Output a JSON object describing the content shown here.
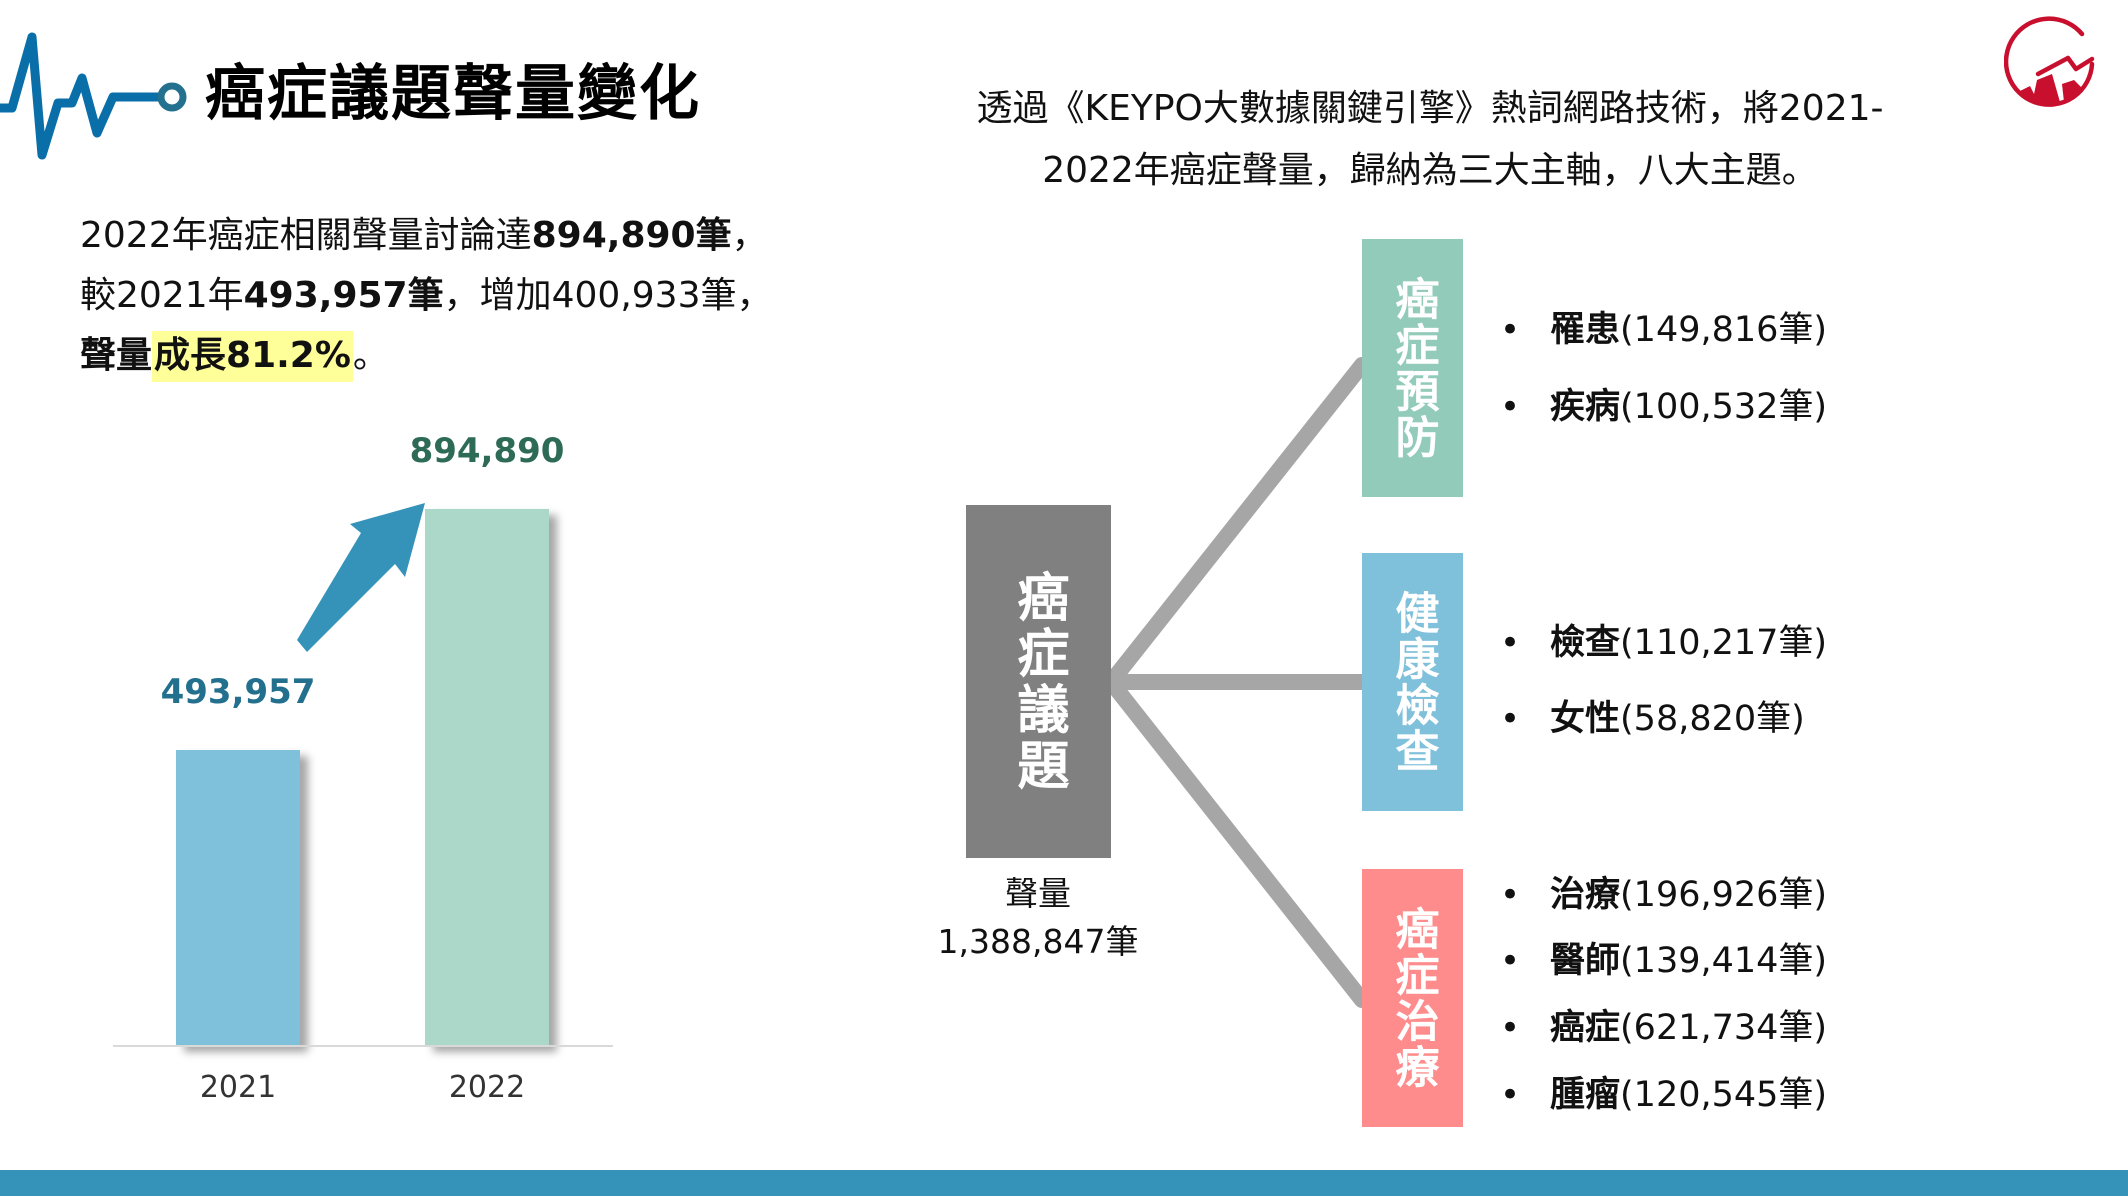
{
  "header": {
    "title": "癌症議題聲量變化",
    "intro_line1": "透過《KEYPO大數據關鍵引擎》熱詞網路技術，將2021-",
    "intro_line2": "2022年癌症聲量，歸納為三大主軸，八大主題。",
    "icons": {
      "left": "heartbeat-pulse-icon",
      "right": "brand-logo-icon"
    },
    "logo_color": "#c8102e",
    "pulse_color": "#0a6fa8"
  },
  "summary": {
    "line1_prefix": "2022年癌症相關聲量討論達",
    "line1_bold": "894,890筆",
    "line1_suffix": "，",
    "line2_prefix": "較2021年",
    "line2_bold": "493,957筆",
    "line2_suffix": "，增加400,933筆，",
    "line3_bold": "聲量",
    "line3_highlight": "成長81.2%",
    "line3_suffix": "。",
    "highlight_color": "#ffff99"
  },
  "chart_data": {
    "type": "bar",
    "title": "",
    "categories": [
      "2021",
      "2022"
    ],
    "values": [
      493957,
      894890
    ],
    "value_labels": [
      "493,957",
      "894,890"
    ],
    "colors": [
      "#7fc0da",
      "#abd8c9"
    ],
    "xlabel": "",
    "ylabel": "",
    "ylim": [
      0,
      1000000
    ],
    "grid": false,
    "legend": null,
    "annotations": [
      "upward trend arrow from 2021 to 2022"
    ]
  },
  "diagram": {
    "center": {
      "label": "癌症議題",
      "caption_line1": "聲量",
      "caption_line2": "1,388,847筆",
      "color": "#808080"
    },
    "axes": [
      {
        "label": "癌症預防",
        "color": "#93cbba",
        "topics": [
          {
            "name": "罹患",
            "count": "(149,816筆)"
          },
          {
            "name": "疾病",
            "count": "(100,532筆)"
          }
        ]
      },
      {
        "label": "健康檢查",
        "color": "#7fc0da",
        "topics": [
          {
            "name": "檢查",
            "count": "(110,217筆)"
          },
          {
            "name": "女性",
            "count": "(58,820筆)"
          }
        ]
      },
      {
        "label": "癌症治療",
        "color": "#ff8c8c",
        "topics": [
          {
            "name": "治療",
            "count": "(196,926筆)"
          },
          {
            "name": "醫師",
            "count": "(139,414筆)"
          },
          {
            "name": "癌症",
            "count": "(621,734筆)"
          },
          {
            "name": "腫瘤",
            "count": "(120,545筆)"
          }
        ]
      }
    ],
    "bullet": "•"
  },
  "footer": {
    "color": "#3593ba"
  }
}
